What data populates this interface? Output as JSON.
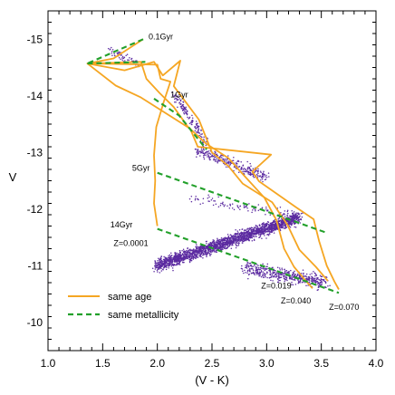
{
  "chart_data": {
    "type": "scatter",
    "xlabel": "(V - K)",
    "ylabel": "V",
    "xlim": [
      1.0,
      4.0
    ],
    "ylim": [
      -9.5,
      -15.5
    ],
    "x_ticks": [
      "1.0",
      "1.5",
      "2.0",
      "2.5",
      "3.0",
      "3.5",
      "4.0"
    ],
    "y_ticks": [
      "-15",
      "-14",
      "-13",
      "-12",
      "-11",
      "-10"
    ],
    "y_tick_values": [
      -15,
      -14,
      -13,
      -12,
      -11,
      -10
    ],
    "x_tick_values": [
      1.0,
      1.5,
      2.0,
      2.5,
      3.0,
      3.5,
      4.0
    ],
    "colors": {
      "same_age": "#F5A623",
      "same_metallicity": "#22A02A",
      "points": "#5B2AA0"
    },
    "annotations": [
      {
        "text": "0.1Gyr",
        "x": 1.92,
        "y": -15.0
      },
      {
        "text": "1Gyr",
        "x": 2.12,
        "y": -13.97
      },
      {
        "text": "5Gyr",
        "x": 1.77,
        "y": -12.68
      },
      {
        "text": "14Gyr",
        "x": 1.57,
        "y": -11.68
      },
      {
        "text": "Z=0.0001",
        "x": 1.6,
        "y": -11.35
      },
      {
        "text": "Z=0.019",
        "x": 2.95,
        "y": -10.6
      },
      {
        "text": "Z=0.040",
        "x": 3.13,
        "y": -10.33
      },
      {
        "text": "Z=0.070",
        "x": 3.57,
        "y": -10.22
      }
    ],
    "legend": {
      "placement": "bottom-left",
      "entries": [
        {
          "label": "same age",
          "style": "solid",
          "color": "#F5A623"
        },
        {
          "label": "same metallicity",
          "style": "dashed",
          "color": "#22A02A"
        }
      ]
    },
    "series": [
      {
        "kind": "same_age",
        "style": "solid",
        "points": [
          [
            1.87,
            -15.0
          ],
          [
            1.6,
            -14.66
          ],
          [
            1.36,
            -14.57
          ],
          [
            1.62,
            -14.18
          ],
          [
            1.85,
            -13.97
          ],
          [
            2.3,
            -13.42
          ],
          [
            2.37,
            -13.1
          ],
          [
            3.04,
            -12.96
          ],
          [
            2.87,
            -12.66
          ],
          [
            2.93,
            -12.49
          ],
          [
            3.27,
            -12.03
          ],
          [
            3.43,
            -11.82
          ],
          [
            3.48,
            -11.43
          ],
          [
            3.55,
            -11.0
          ],
          [
            3.62,
            -10.72
          ],
          [
            3.66,
            -10.58
          ]
        ]
      },
      {
        "kind": "same_age",
        "style": "solid",
        "points": [
          [
            1.36,
            -14.57
          ],
          [
            1.7,
            -14.45
          ],
          [
            1.97,
            -14.6
          ],
          [
            2.05,
            -14.36
          ],
          [
            2.21,
            -14.62
          ],
          [
            2.15,
            -14.17
          ],
          [
            2.38,
            -13.58
          ],
          [
            2.5,
            -13.0
          ],
          [
            2.65,
            -12.76
          ],
          [
            2.78,
            -12.45
          ],
          [
            3.05,
            -12.12
          ],
          [
            3.19,
            -11.72
          ],
          [
            3.3,
            -11.28
          ],
          [
            3.45,
            -10.98
          ],
          [
            3.56,
            -10.73
          ]
        ]
      },
      {
        "kind": "same_age",
        "style": "solid",
        "points": [
          [
            1.36,
            -14.57
          ],
          [
            1.85,
            -14.6
          ],
          [
            1.9,
            -14.3
          ],
          [
            2.02,
            -14.05
          ],
          [
            2.15,
            -13.8
          ],
          [
            2.28,
            -13.45
          ],
          [
            2.45,
            -13.15
          ],
          [
            2.65,
            -12.9
          ],
          [
            2.78,
            -12.62
          ],
          [
            2.98,
            -12.2
          ],
          [
            3.09,
            -11.8
          ],
          [
            3.16,
            -11.3
          ],
          [
            3.25,
            -10.98
          ],
          [
            3.35,
            -10.75
          ],
          [
            3.42,
            -10.6
          ]
        ]
      },
      {
        "kind": "same_age",
        "style": "solid",
        "points": [
          [
            1.36,
            -14.57
          ],
          [
            2.0,
            -14.55
          ],
          [
            2.03,
            -14.3
          ],
          [
            2.12,
            -14.25
          ],
          [
            2.06,
            -13.9
          ],
          [
            1.99,
            -13.45
          ],
          [
            1.97,
            -12.95
          ],
          [
            1.98,
            -12.5
          ],
          [
            1.97,
            -12.1
          ],
          [
            2.0,
            -11.7
          ]
        ]
      },
      {
        "kind": "same_metallicity",
        "style": "dashed",
        "points": [
          [
            1.87,
            -15.0
          ],
          [
            1.36,
            -14.57
          ]
        ]
      },
      {
        "kind": "same_metallicity",
        "style": "dashed",
        "points": [
          [
            1.36,
            -14.57
          ],
          [
            1.89,
            -14.6
          ]
        ]
      },
      {
        "kind": "same_metallicity",
        "style": "dashed",
        "points": [
          [
            1.97,
            -13.95
          ],
          [
            2.2,
            -13.65
          ],
          [
            2.45,
            -13.05
          ]
        ]
      },
      {
        "kind": "same_metallicity",
        "style": "dashed",
        "points": [
          [
            2.0,
            -12.64
          ],
          [
            3.55,
            -11.58
          ]
        ]
      },
      {
        "kind": "same_metallicity",
        "style": "dashed",
        "points": [
          [
            2.0,
            -11.65
          ],
          [
            3.66,
            -10.52
          ]
        ]
      }
    ],
    "scatter_clusters": [
      {
        "x": [
          2.0,
          3.3
        ],
        "y": [
          -11.0,
          -11.85
        ],
        "n": 2200,
        "spread": 0.11
      },
      {
        "x": [
          2.8,
          3.55
        ],
        "y": [
          -10.95,
          -10.7
        ],
        "n": 450,
        "spread": 0.12
      },
      {
        "x": [
          2.35,
          3.0
        ],
        "y": [
          -13.05,
          -12.55
        ],
        "n": 280,
        "spread": 0.1
      },
      {
        "x": [
          2.15,
          2.45
        ],
        "y": [
          -14.05,
          -13.15
        ],
        "n": 130,
        "spread": 0.08
      },
      {
        "x": [
          1.55,
          1.85
        ],
        "y": [
          -14.8,
          -14.55
        ],
        "n": 55,
        "spread": 0.07
      },
      {
        "x": [
          2.3,
          3.2
        ],
        "y": [
          -12.2,
          -11.9
        ],
        "n": 90,
        "spread": 0.09
      }
    ]
  }
}
